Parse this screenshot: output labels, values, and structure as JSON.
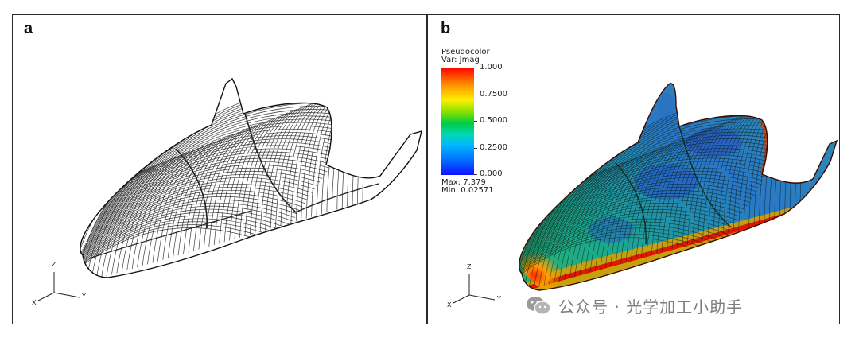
{
  "panels": [
    {
      "letter": "a",
      "render_style": "wireframe",
      "axis_labels": {
        "z": "Z",
        "x": "X",
        "y": "Y"
      }
    },
    {
      "letter": "b",
      "render_style": "pseudocolor",
      "axis_labels": {
        "z": "Z",
        "x": "X",
        "y": "Y"
      }
    }
  ],
  "legend": {
    "title_line1": "Pseudocolor",
    "title_line2": "Var: Jmag",
    "ticks": [
      "1.000",
      "0.7500",
      "0.5000",
      "0.2500",
      "0.000"
    ],
    "max_label": "Max: 7.379",
    "min_label": "Min: 0.02571",
    "colormap": [
      "#ff0000",
      "#ff8800",
      "#ffee00",
      "#00cc44",
      "#00b8ff",
      "#1010ff"
    ]
  },
  "watermark": {
    "icon": "wechat-icon",
    "text": "公众号 · 光学加工小助手"
  }
}
